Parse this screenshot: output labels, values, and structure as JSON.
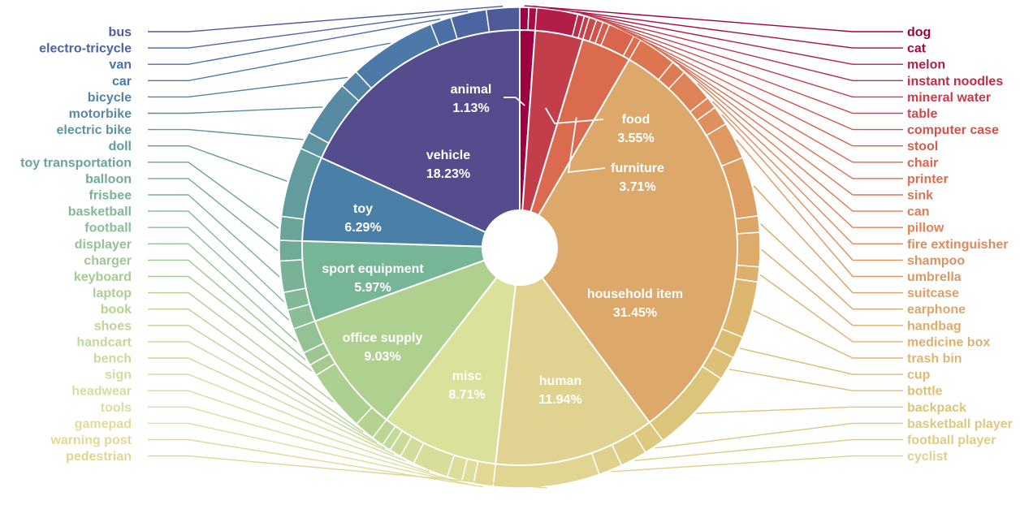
{
  "chart_data": {
    "type": "pie",
    "inner_ring": [
      {
        "label": "animal",
        "percent_text": "1.13%",
        "value": 1.13,
        "color": "#9e0142"
      },
      {
        "label": "food",
        "percent_text": "3.55%",
        "value": 3.55,
        "color": "#c33e4b"
      },
      {
        "label": "furniture",
        "percent_text": "3.71%",
        "value": 3.71,
        "color": "#db6b4e"
      },
      {
        "label": "household item",
        "percent_text": "31.45%",
        "value": 31.45,
        "color": "#dca96b"
      },
      {
        "label": "human",
        "percent_text": "11.94%",
        "value": 11.94,
        "color": "#e0d290"
      },
      {
        "label": "misc",
        "percent_text": "8.71%",
        "value": 8.71,
        "color": "#d9e19b"
      },
      {
        "label": "office supply",
        "percent_text": "9.03%",
        "value": 9.03,
        "color": "#b0d08f"
      },
      {
        "label": "sport equipment",
        "percent_text": "5.97%",
        "value": 5.97,
        "color": "#77b597"
      },
      {
        "label": "toy",
        "percent_text": "6.29%",
        "value": 6.29,
        "color": "#4a7fa8"
      },
      {
        "label": "vehicle",
        "percent_text": "18.23%",
        "value": 18.23,
        "color": "#544c8d"
      }
    ],
    "outer_ring": [
      {
        "label": "dog",
        "value": 0.6,
        "parent": "animal",
        "color": "#9e0142"
      },
      {
        "label": "cat",
        "value": 0.53,
        "parent": "animal",
        "color": "#a80c45"
      },
      {
        "label": "melon",
        "value": 2.75,
        "parent": "food",
        "color": "#b21e47"
      },
      {
        "label": "instant noodles",
        "value": 0.45,
        "parent": "food",
        "color": "#bb2e49"
      },
      {
        "label": "mineral water",
        "value": 0.35,
        "parent": "food",
        "color": "#c33e4b"
      },
      {
        "label": "table",
        "value": 0.5,
        "parent": "furniture",
        "color": "#ca4a4b"
      },
      {
        "label": "computer case",
        "value": 0.45,
        "parent": "furniture",
        "color": "#d0544b"
      },
      {
        "label": "stool",
        "value": 0.45,
        "parent": "furniture",
        "color": "#d55d4b"
      },
      {
        "label": "chair",
        "value": 1.8,
        "parent": "furniture",
        "color": "#d9654c"
      },
      {
        "label": "printer",
        "value": 0.51,
        "parent": "furniture",
        "color": "#dc6d4e"
      },
      {
        "label": "sink",
        "value": 2.6,
        "parent": "household item",
        "color": "#dd7551"
      },
      {
        "label": "can",
        "value": 1.0,
        "parent": "household item",
        "color": "#dd7c54"
      },
      {
        "label": "pillow",
        "value": 2.3,
        "parent": "household item",
        "color": "#de8357"
      },
      {
        "label": "fire extinguisher",
        "value": 0.8,
        "parent": "household item",
        "color": "#de8a5b"
      },
      {
        "label": "shampoo",
        "value": 1.3,
        "parent": "household item",
        "color": "#de915e"
      },
      {
        "label": "umbrella",
        "value": 2.5,
        "parent": "household item",
        "color": "#de9861"
      },
      {
        "label": "suitcase",
        "value": 4.0,
        "parent": "household item",
        "color": "#de9f64"
      },
      {
        "label": "earphone",
        "value": 1.1,
        "parent": "household item",
        "color": "#dda567"
      },
      {
        "label": "handbag",
        "value": 2.3,
        "parent": "household item",
        "color": "#ddab6a"
      },
      {
        "label": "medicine box",
        "value": 1.0,
        "parent": "household item",
        "color": "#ddb16d"
      },
      {
        "label": "trash bin",
        "value": 3.8,
        "parent": "household item",
        "color": "#ddb670"
      },
      {
        "label": "cup",
        "value": 1.5,
        "parent": "household item",
        "color": "#dcbb73"
      },
      {
        "label": "bottle",
        "value": 1.6,
        "parent": "household item",
        "color": "#dcc077"
      },
      {
        "label": "backpack",
        "value": 5.65,
        "parent": "household item",
        "color": "#ddc47b"
      },
      {
        "label": "basketball player",
        "value": 1.4,
        "parent": "human",
        "color": "#ddc880"
      },
      {
        "label": "football player",
        "value": 1.8,
        "parent": "human",
        "color": "#decd86"
      },
      {
        "label": "cyclist",
        "value": 1.6,
        "parent": "human",
        "color": "#dfd18b"
      },
      {
        "label": "pedestrian",
        "value": 7.14,
        "parent": "human",
        "color": "#e0d591"
      },
      {
        "label": "warning post",
        "value": 1.3,
        "parent": "misc",
        "color": "#e2d996"
      },
      {
        "label": "gamepad",
        "value": 0.8,
        "parent": "misc",
        "color": "#e0dc99"
      },
      {
        "label": "tools",
        "value": 1.0,
        "parent": "misc",
        "color": "#dcdd9a"
      },
      {
        "label": "headwear",
        "value": 2.4,
        "parent": "misc",
        "color": "#d8dd9b"
      },
      {
        "label": "sign",
        "value": 1.0,
        "parent": "misc",
        "color": "#d2dc9b"
      },
      {
        "label": "bench",
        "value": 0.8,
        "parent": "misc",
        "color": "#cbda99"
      },
      {
        "label": "handcart",
        "value": 0.6,
        "parent": "misc",
        "color": "#c4d897"
      },
      {
        "label": "shoes",
        "value": 0.81,
        "parent": "misc",
        "color": "#bdd595"
      },
      {
        "label": "book",
        "value": 1.4,
        "parent": "office supply",
        "color": "#b6d293"
      },
      {
        "label": "laptop",
        "value": 4.2,
        "parent": "office supply",
        "color": "#aecf92"
      },
      {
        "label": "keyboard",
        "value": 0.8,
        "parent": "office supply",
        "color": "#a6cb91"
      },
      {
        "label": "charger",
        "value": 0.9,
        "parent": "office supply",
        "color": "#9dc692"
      },
      {
        "label": "displayer",
        "value": 1.73,
        "parent": "office supply",
        "color": "#94c294"
      },
      {
        "label": "football",
        "value": 1.3,
        "parent": "sport equipment",
        "color": "#8bbd96"
      },
      {
        "label": "basketball",
        "value": 1.2,
        "parent": "sport equipment",
        "color": "#82b897"
      },
      {
        "label": "frisbee",
        "value": 2.1,
        "parent": "sport equipment",
        "color": "#79b297"
      },
      {
        "label": "balloon",
        "value": 1.37,
        "parent": "sport equipment",
        "color": "#71ab98"
      },
      {
        "label": "toy transportation",
        "value": 1.6,
        "parent": "toy",
        "color": "#6aa49a"
      },
      {
        "label": "doll",
        "value": 4.69,
        "parent": "toy",
        "color": "#649c9d"
      },
      {
        "label": "electric bike",
        "value": 1.2,
        "parent": "vehicle",
        "color": "#5e94a0"
      },
      {
        "label": "motorbike",
        "value": 3.8,
        "parent": "vehicle",
        "color": "#588ba3"
      },
      {
        "label": "bicycle",
        "value": 1.3,
        "parent": "vehicle",
        "color": "#5282a6"
      },
      {
        "label": "car",
        "value": 5.9,
        "parent": "vehicle",
        "color": "#4d79a8"
      },
      {
        "label": "van",
        "value": 1.4,
        "parent": "vehicle",
        "color": "#4b6fa6"
      },
      {
        "label": "electro-tricycle",
        "value": 2.4,
        "parent": "vehicle",
        "color": "#4c65a0"
      },
      {
        "label": "bus",
        "value": 2.23,
        "parent": "vehicle",
        "color": "#4f5b98"
      }
    ]
  }
}
